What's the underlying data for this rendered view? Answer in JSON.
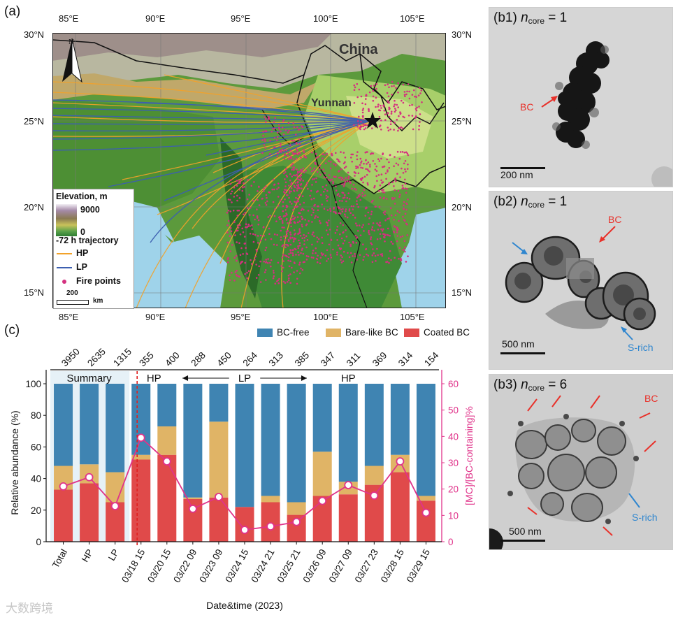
{
  "panels": {
    "a": "(a)",
    "c": "(c)",
    "b1": {
      "label": "(b1)",
      "n": "n",
      "core": "core",
      "eq": "= 1",
      "scale": "200 nm",
      "annos": [
        "BC"
      ]
    },
    "b2": {
      "label": "(b2)",
      "n": "n",
      "core": "core",
      "eq": "= 1",
      "scale": "500 nm",
      "annos_red": [
        "BC"
      ],
      "annos_blue": [
        "S-rich"
      ]
    },
    "b3": {
      "label": "(b3)",
      "n": "n",
      "core": "core",
      "eq": "= 6",
      "scale": "500 nm",
      "annos_red": [
        "BC"
      ],
      "annos_blue": [
        "S-rich"
      ]
    }
  },
  "map": {
    "lon_ticks": [
      "85°E",
      "90°E",
      "95°E",
      "100°E",
      "105°E"
    ],
    "lat_ticks_left": [
      "30°N",
      "25°N",
      "20°N",
      "15°N"
    ],
    "lat_ticks_right": [
      "30°N",
      "25°N",
      "20°N",
      "15°N"
    ],
    "labels": {
      "china": "China",
      "yunnan": "Yunnan",
      "north": "N"
    },
    "legend": {
      "elevation_title": "Elevation, m",
      "elevation_max": "9000",
      "elevation_min": "0",
      "trajectory_title": "-72 h trajectory",
      "hp": "HP",
      "lp": "LP",
      "fire": "Fire points",
      "scale_value": "200",
      "scale_unit": "km"
    },
    "colors": {
      "hp": "#f2a22a",
      "lp": "#3d5fb0",
      "fire": "#d4307f",
      "ocean": "#9fd3ea"
    }
  },
  "chart_data": {
    "type": "bar",
    "stacked": true,
    "categories": [
      "Total",
      "HP",
      "LP",
      "03/18 15",
      "03/20 15",
      "03/22 09",
      "03/23 09",
      "03/24 15",
      "03/24 21",
      "03/25 21",
      "03/26 09",
      "03/27 09",
      "03/27 23",
      "03/28 15",
      "03/29 15"
    ],
    "counts": [
      "3950",
      "2635",
      "1315",
      "355",
      "400",
      "288",
      "450",
      "264",
      "313",
      "385",
      "347",
      "311",
      "369",
      "314",
      "154"
    ],
    "series": [
      {
        "name": "Coated BC",
        "color": "#e04a4a",
        "values": [
          33,
          37,
          25,
          52,
          55,
          27,
          28,
          22,
          25,
          17,
          29,
          30,
          36,
          44,
          26
        ]
      },
      {
        "name": "Bare-like BC",
        "color": "#e0b466",
        "values": [
          15,
          12,
          19,
          3,
          18,
          1,
          48,
          0,
          4,
          8,
          28,
          8,
          12,
          11,
          3
        ]
      },
      {
        "name": "BC-free",
        "color": "#3f84b2",
        "values": [
          52,
          51,
          56,
          45,
          27,
          72,
          24,
          78,
          71,
          75,
          43,
          62,
          52,
          45,
          71
        ]
      }
    ],
    "line": {
      "name": "[MC]/[BC-containing]%",
      "color": "#e0338a",
      "values": [
        21,
        24.5,
        13.5,
        39.5,
        30.5,
        12.5,
        17,
        4.5,
        5.8,
        7.5,
        15.5,
        21.5,
        17.5,
        30.5,
        11
      ]
    },
    "ylim": [
      0,
      100
    ],
    "yticks": [
      "0",
      "20",
      "40",
      "60",
      "80",
      "100"
    ],
    "y2lim": [
      0,
      60
    ],
    "y2ticks": [
      "0",
      "10",
      "20",
      "30",
      "40",
      "50",
      "60"
    ],
    "ylabel": "Relative abundance (%)",
    "y2label": "[MC]/[BC-containing]%",
    "xlabel": "Date&time (2023)",
    "group_labels": {
      "summary": "Summary",
      "hp1": "HP",
      "lp": "LP",
      "hp2": "HP"
    },
    "legend": [
      "BC-free",
      "Bare-like BC",
      "Coated BC"
    ]
  },
  "watermark": "大数跨境"
}
